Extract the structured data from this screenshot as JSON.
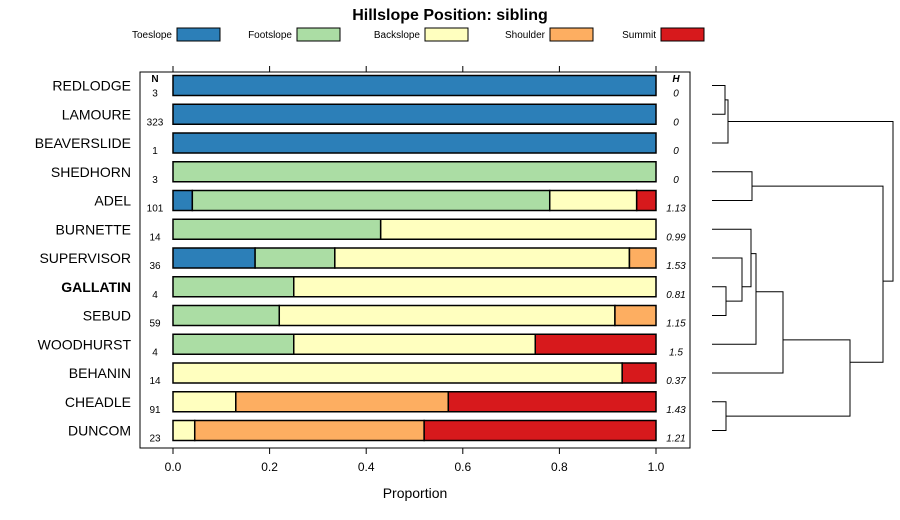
{
  "chart_data": {
    "type": "bar",
    "title": "Hillslope Position: sibling",
    "xlabel": "Proportion",
    "ylabel": "",
    "xlim": [
      0,
      1
    ],
    "xticks": [
      "0.0",
      "0.2",
      "0.4",
      "0.6",
      "0.8",
      "1.0"
    ],
    "n_header": "N",
    "h_header": "H",
    "legend": {
      "placement": "top",
      "items": [
        {
          "name": "Toeslope",
          "color": "#2c7fb8"
        },
        {
          "name": "Footslope",
          "color": "#abdda4"
        },
        {
          "name": "Backslope",
          "color": "#ffffbf"
        },
        {
          "name": "Shoulder",
          "color": "#fdae61"
        },
        {
          "name": "Summit",
          "color": "#d7191c"
        }
      ]
    },
    "categories": [
      "REDLODGE",
      "LAMOURE",
      "BEAVERSLIDE",
      "SHEDHORN",
      "ADEL",
      "BURNETTE",
      "SUPERVISOR",
      "GALLATIN",
      "SEBUD",
      "WOODHURST",
      "BEHANIN",
      "CHEADLE",
      "DUNCOM"
    ],
    "highlight": "GALLATIN",
    "n": [
      "3",
      "323",
      "1",
      "3",
      "101",
      "14",
      "36",
      "4",
      "59",
      "4",
      "14",
      "91",
      "23"
    ],
    "h": [
      "0",
      "0",
      "0",
      "0",
      "1.13",
      "0.99",
      "1.53",
      "0.81",
      "1.15",
      "1.5",
      "0.37",
      "1.43",
      "1.21"
    ],
    "proportions": [
      [
        1,
        0,
        0,
        0,
        0
      ],
      [
        1,
        0,
        0,
        0,
        0
      ],
      [
        1,
        0,
        0,
        0,
        0
      ],
      [
        0,
        1,
        0,
        0,
        0
      ],
      [
        0.04,
        0.74,
        0.18,
        0,
        0.04
      ],
      [
        0,
        0.43,
        0.57,
        0,
        0
      ],
      [
        0.17,
        0.165,
        0.61,
        0.055,
        0
      ],
      [
        0,
        0.25,
        0.75,
        0,
        0
      ],
      [
        0,
        0.22,
        0.695,
        0.085,
        0
      ],
      [
        0,
        0.25,
        0.5,
        0,
        0.25
      ],
      [
        0,
        0,
        0.93,
        0,
        0.07
      ],
      [
        0,
        0,
        0.13,
        0.44,
        0.43
      ],
      [
        0,
        0,
        0.045,
        0.475,
        0.48
      ]
    ]
  }
}
